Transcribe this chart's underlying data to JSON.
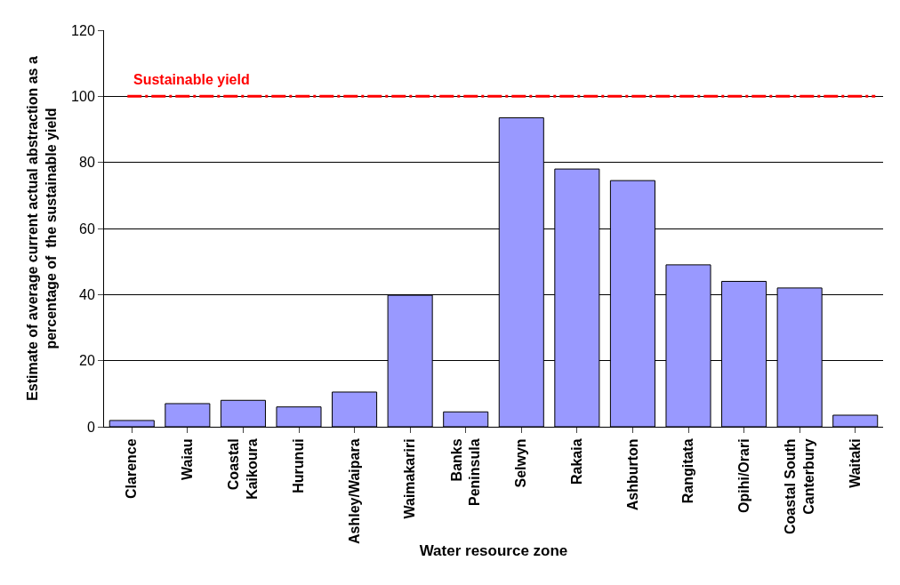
{
  "chart_data": {
    "type": "bar",
    "xlabel": "Water resource zone",
    "ylabel": "Estimate of average current actual abstraction as a\npercentage of  the sustainable yield",
    "categories": [
      "Clarence",
      "Waiau",
      "Coastal\nKaikoura",
      "Hurunui",
      "Ashley/Waipara",
      "Waimakariri",
      "Banks\nPeninsula",
      "Selwyn",
      "Rakaia",
      "Ashburton",
      "Rangitata",
      "Opihi/Orari",
      "Coastal South\nCanterbury",
      "Waitaki"
    ],
    "values": [
      1.9,
      7,
      8,
      6,
      10.5,
      39.8,
      4.5,
      93.5,
      78,
      74.5,
      49,
      44,
      42,
      3.5
    ],
    "color": "#9999ff",
    "ylim": [
      0,
      120
    ],
    "yticks": [
      0,
      20,
      40,
      60,
      80,
      100,
      120
    ],
    "grid": "y",
    "ref_lines": [
      {
        "axis": "y",
        "value": 100,
        "label": "Sustainable yield",
        "color": "#ff0000",
        "line_style": "dashed"
      }
    ]
  }
}
